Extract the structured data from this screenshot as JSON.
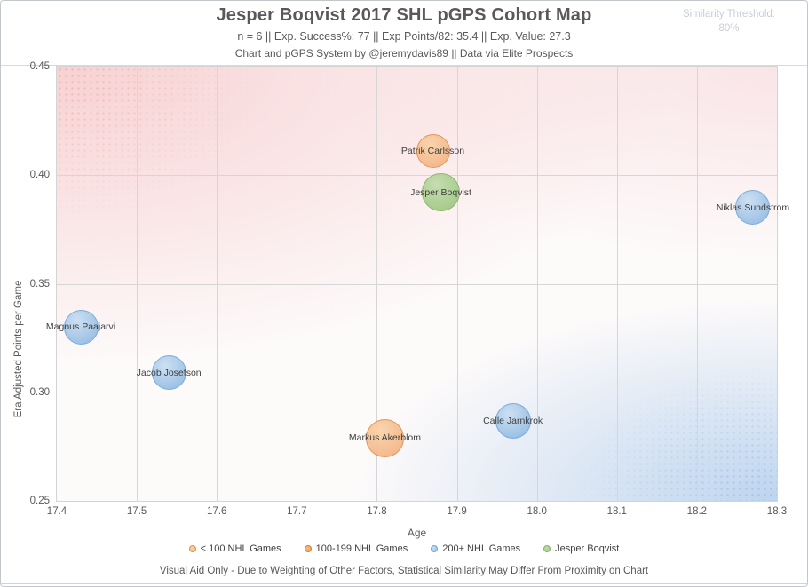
{
  "header": {
    "title": "Jesper Boqvist 2017 SHL pGPS Cohort Map",
    "stats_line": "n = 6 || Exp. Success%: 77 || Exp Points/82: 35.4 || Exp. Value: 27.3",
    "credit_line": "Chart and pGPS System by @jeremydavis89 || Data via Elite Prospects",
    "similarity_label": "Similarity Threshold:",
    "similarity_value": "80%"
  },
  "chart_data": {
    "type": "scatter",
    "title": "Jesper Boqvist 2017 SHL pGPS Cohort Map",
    "xlabel": "Age",
    "ylabel": "Era Adjusted Points per Game",
    "xlim": [
      17.4,
      18.3
    ],
    "ylim": [
      0.25,
      0.45
    ],
    "x_ticks": [
      "17.4",
      "17.5",
      "17.6",
      "17.7",
      "17.8",
      "17.9",
      "18.0",
      "18.1",
      "18.2",
      "18.3"
    ],
    "y_ticks": [
      "0.45",
      "0.40",
      "0.35",
      "0.30",
      "0.25"
    ],
    "grid": true,
    "legend_position": "bottom",
    "legend": [
      {
        "key": "lt100",
        "label": "< 100 NHL Games",
        "fill": "#f4b282",
        "fill_light": "#f9d3a8",
        "edge": "#e48f4e"
      },
      {
        "key": "100to199",
        "label": "100-199 NHL Games",
        "fill": "#ec9a55",
        "fill_light": "#f4bd85",
        "edge": "#da7c30"
      },
      {
        "key": "200plus",
        "label": "200+ NHL Games",
        "fill": "#90bae3",
        "fill_light": "#cadff2",
        "edge": "#73a6d7"
      },
      {
        "key": "boqvist",
        "label": "Jesper Boqvist",
        "fill": "#9cc77e",
        "fill_light": "#c2dcae",
        "edge": "#87b269"
      }
    ],
    "points": [
      {
        "name": "Patrik Carlsson",
        "age": 17.87,
        "ppg": 0.411,
        "group": "lt100",
        "size": 38
      },
      {
        "name": "Jesper Boqvist",
        "age": 17.88,
        "ppg": 0.392,
        "group": "boqvist",
        "size": 43
      },
      {
        "name": "Niklas Sundstrom",
        "age": 18.27,
        "ppg": 0.385,
        "group": "200plus",
        "size": 39
      },
      {
        "name": "Magnus Paajarvi",
        "age": 17.43,
        "ppg": 0.33,
        "group": "200plus",
        "size": 39
      },
      {
        "name": "Jacob Josefson",
        "age": 17.54,
        "ppg": 0.309,
        "group": "200plus",
        "size": 39
      },
      {
        "name": "Calle Jarnkrok",
        "age": 17.97,
        "ppg": 0.287,
        "group": "200plus",
        "size": 40
      },
      {
        "name": "Markus Akerblom",
        "age": 17.81,
        "ppg": 0.279,
        "group": "lt100",
        "size": 43
      }
    ]
  },
  "footer": {
    "disclaimer": "Visual Aid Only - Due to Weighting of Other Factors, Statistical Similarity May Differ From Proximity on Chart"
  }
}
